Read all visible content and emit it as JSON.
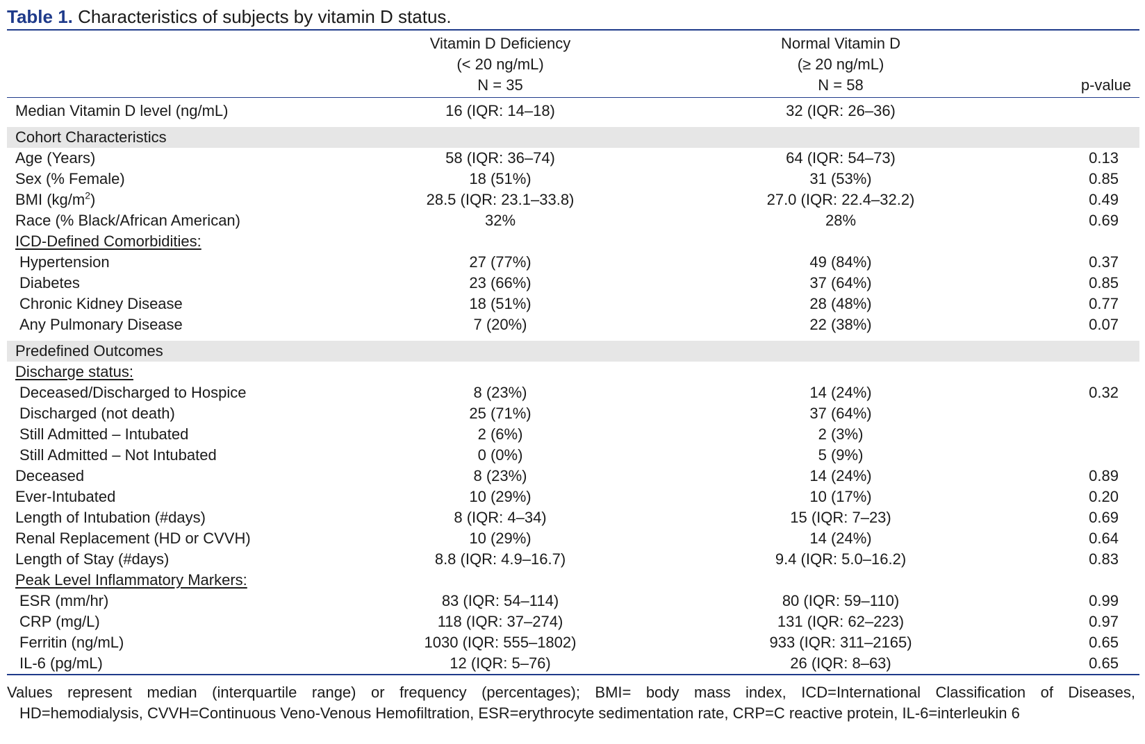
{
  "title": {
    "label": "Table 1.",
    "text": "Characteristics of subjects by vitamin D status."
  },
  "header": {
    "col1": [
      "Vitamin D Deficiency",
      "(< 20 ng/mL)",
      "N = 35"
    ],
    "col2": [
      "Normal Vitamin D",
      "(≥ 20 ng/mL)",
      "N = 58"
    ],
    "pvalue": "p-value"
  },
  "rows": [
    {
      "label": "Median Vitamin D level (ng/mL)",
      "c1": "16 (IQR: 14–18)",
      "c2": "32 (IQR: 26–36)",
      "p": ""
    },
    {
      "label": "Cohort Characteristics",
      "section": true
    },
    {
      "label": "Age (Years)",
      "c1": "58 (IQR: 36–74)",
      "c2": "64 (IQR: 54–73)",
      "p": "0.13"
    },
    {
      "label": "Sex (% Female)",
      "c1": "18 (51%)",
      "c2": "31 (53%)",
      "p": "0.85"
    },
    {
      "label": "BMI (kg/m",
      "sup": "2",
      "label_after": ")",
      "c1": "28.5 (IQR: 23.1–33.8)",
      "c2": "27.0 (IQR: 22.4–32.2)",
      "p": "0.49"
    },
    {
      "label": "Race (% Black/African American)",
      "c1": "32%",
      "c2": "28%",
      "p": "0.69"
    },
    {
      "label": "ICD-Defined Comorbidities:",
      "underline": true
    },
    {
      "label": "Hypertension",
      "sub": true,
      "c1": "27 (77%)",
      "c2": "49 (84%)",
      "p": "0.37"
    },
    {
      "label": "Diabetes",
      "sub": true,
      "c1": "23 (66%)",
      "c2": "37 (64%)",
      "p": "0.85"
    },
    {
      "label": "Chronic Kidney Disease",
      "sub": true,
      "c1": "18 (51%)",
      "c2": "28 (48%)",
      "p": "0.77"
    },
    {
      "label": "Any Pulmonary Disease",
      "sub": true,
      "c1": "7 (20%)",
      "c2": "22 (38%)",
      "p": "0.07"
    },
    {
      "label": "Predefined Outcomes",
      "section": true
    },
    {
      "label": "Discharge status:",
      "underline": true
    },
    {
      "label": "Deceased/Discharged to Hospice",
      "sub": true,
      "c1": "8 (23%)",
      "c2": "14 (24%)",
      "p": "0.32"
    },
    {
      "label": "Discharged (not death)",
      "sub": true,
      "c1": "25 (71%)",
      "c2": "37 (64%)",
      "p": ""
    },
    {
      "label": "Still Admitted – Intubated",
      "sub": true,
      "c1": "2 (6%)",
      "c2": "2 (3%)",
      "p": ""
    },
    {
      "label": "Still Admitted – Not Intubated",
      "sub": true,
      "c1": "0 (0%)",
      "c2": "5 (9%)",
      "p": ""
    },
    {
      "label": "Deceased",
      "c1": "8 (23%)",
      "c2": "14 (24%)",
      "p": "0.89"
    },
    {
      "label": "Ever-Intubated",
      "c1": "10 (29%)",
      "c2": "10 (17%)",
      "p": "0.20"
    },
    {
      "label": "Length of Intubation (#days)",
      "c1": "8 (IQR: 4–34)",
      "c2": "15 (IQR: 7–23)",
      "p": "0.69"
    },
    {
      "label": "Renal Replacement (HD or CVVH)",
      "c1": "10 (29%)",
      "c2": "14 (24%)",
      "p": "0.64"
    },
    {
      "label": "Length of Stay (#days)",
      "c1": "8.8 (IQR: 4.9–16.7)",
      "c2": "9.4 (IQR: 5.0–16.2)",
      "p": "0.83"
    },
    {
      "label": "Peak Level Inflammatory Markers:",
      "underline": true
    },
    {
      "label": "ESR (mm/hr)",
      "sub": true,
      "c1": "83 (IQR: 54–114)",
      "c2": "80 (IQR: 59–110)",
      "p": "0.99"
    },
    {
      "label": "CRP (mg/L)",
      "sub": true,
      "c1": "118 (IQR: 37–274)",
      "c2": "131 (IQR: 62–223)",
      "p": "0.97"
    },
    {
      "label": "Ferritin (ng/mL)",
      "sub": true,
      "c1": "1030 (IQR: 555–1802)",
      "c2": "933 (IQR: 311–2165)",
      "p": "0.65"
    },
    {
      "label": "IL-6 (pg/mL)",
      "sub": true,
      "c1": "12 (IQR: 5–76)",
      "c2": "26 (IQR: 8–63)",
      "p": "0.65"
    }
  ],
  "footnote": {
    "line1": "Values represent median (interquartile range) or frequency (percentages); BMI= body mass index, ICD=International Classification of Diseases,",
    "line2": "HD=hemodialysis, CVVH=Continuous Veno-Venous Hemofiltration, ESR=erythrocyte sedimentation rate, CRP=C reactive protein, IL-6=interleukin 6"
  },
  "colors": {
    "accent": "#1e3a8a",
    "shade": "#e6e6e6"
  }
}
